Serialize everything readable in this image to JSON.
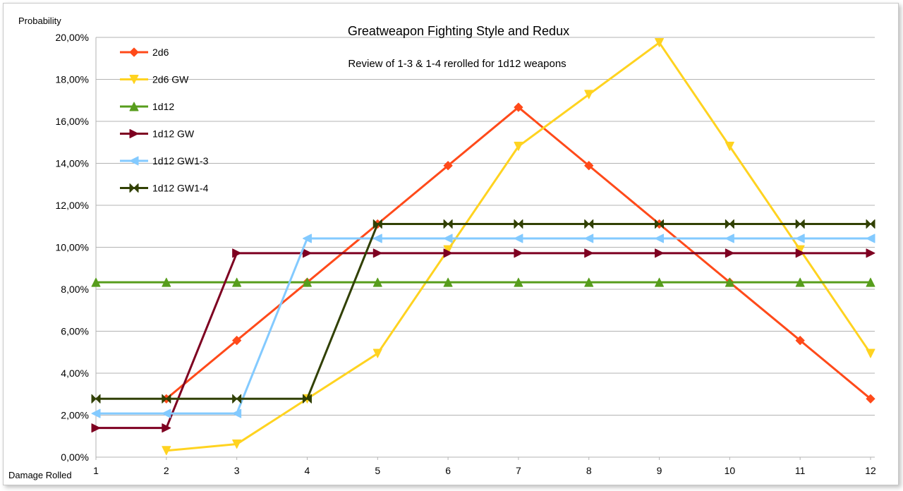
{
  "chart_data": {
    "type": "line",
    "title": "Greatweapon Fighting Style and Redux",
    "subtitle": "Review of 1-3 & 1-4 rerolled for 1d12 weapons",
    "ylabel": "Probability",
    "xlabel": "Damage Rolled",
    "x": [
      1,
      2,
      3,
      4,
      5,
      6,
      7,
      8,
      9,
      10,
      11,
      12
    ],
    "ylim": [
      0,
      20
    ],
    "yticks": [
      "0,00%",
      "2,00%",
      "4,00%",
      "6,00%",
      "8,00%",
      "10,00%",
      "12,00%",
      "14,00%",
      "16,00%",
      "18,00%",
      "20,00%"
    ],
    "grid": "horizontal",
    "legend": "top-left",
    "series": [
      {
        "name": "2d6",
        "color": "#ff4a1a",
        "marker": "diamond",
        "values": [
          null,
          2.78,
          5.56,
          8.33,
          11.11,
          13.89,
          16.67,
          13.89,
          11.11,
          8.33,
          5.56,
          2.78
        ]
      },
      {
        "name": "2d6 GW",
        "color": "#ffd320",
        "marker": "triangle-down",
        "values": [
          null,
          0.31,
          0.62,
          2.78,
          4.94,
          9.88,
          14.81,
          17.28,
          19.75,
          14.81,
          9.88,
          4.94
        ]
      },
      {
        "name": "1d12",
        "color": "#579d1c",
        "marker": "triangle-up",
        "values": [
          8.33,
          8.33,
          8.33,
          8.33,
          8.33,
          8.33,
          8.33,
          8.33,
          8.33,
          8.33,
          8.33,
          8.33
        ]
      },
      {
        "name": "1d12 GW",
        "color": "#7e0021",
        "marker": "triangle-right",
        "values": [
          1.39,
          1.39,
          9.72,
          9.72,
          9.72,
          9.72,
          9.72,
          9.72,
          9.72,
          9.72,
          9.72,
          9.72
        ]
      },
      {
        "name": "1d12 GW1-3",
        "color": "#83caff",
        "marker": "triangle-left",
        "values": [
          2.08,
          2.08,
          2.08,
          10.42,
          10.42,
          10.42,
          10.42,
          10.42,
          10.42,
          10.42,
          10.42,
          10.42
        ]
      },
      {
        "name": "1d12 GW1-4",
        "color": "#314004",
        "marker": "bowtie",
        "values": [
          2.78,
          2.78,
          2.78,
          2.78,
          11.11,
          11.11,
          11.11,
          11.11,
          11.11,
          11.11,
          11.11,
          11.11
        ]
      }
    ]
  }
}
